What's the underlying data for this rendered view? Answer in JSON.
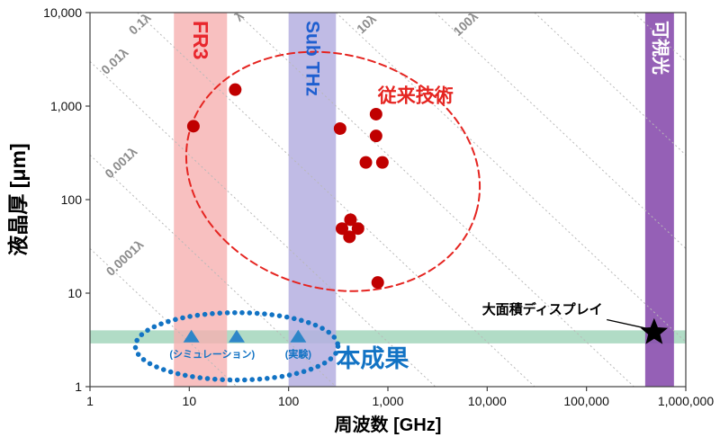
{
  "chart_data": {
    "type": "scatter",
    "x_axis": {
      "label": "周波数 [GHz]",
      "scale": "log",
      "min": 1,
      "max": 1000000,
      "tick_values": [
        1,
        10,
        100,
        1000,
        10000,
        100000,
        1000000
      ],
      "tick_labels": [
        "1",
        "10",
        "100",
        "1,000",
        "10,000",
        "100,000",
        "1,000,000"
      ]
    },
    "y_axis": {
      "label": "液晶厚 [μm]",
      "scale": "log",
      "min": 1,
      "max": 10000,
      "tick_values": [
        1,
        10,
        100,
        1000,
        10000
      ],
      "tick_labels": [
        "1",
        "10",
        "100",
        "1,000",
        "10,000"
      ]
    },
    "series": [
      {
        "name": "従来技術",
        "marker": "circle",
        "color": "#c00000",
        "points": [
          [
            11,
            610
          ],
          [
            29,
            1500
          ],
          [
            330,
            575
          ],
          [
            760,
            820
          ],
          [
            760,
            480
          ],
          [
            600,
            250
          ],
          [
            880,
            250
          ],
          [
            420,
            61
          ],
          [
            345,
            49
          ],
          [
            500,
            49
          ],
          [
            410,
            40
          ],
          [
            790,
            13
          ]
        ]
      },
      {
        "name": "本成果",
        "marker": "triangle",
        "color": "#2e86c8",
        "points": [
          [
            10.5,
            3.4
          ],
          [
            30,
            3.4
          ],
          [
            125,
            3.4
          ]
        ]
      },
      {
        "name": "大面積ディスプレイ",
        "marker": "star",
        "color": "#000000",
        "points": [
          [
            480000,
            3.8
          ]
        ]
      }
    ],
    "bands_vertical": [
      {
        "label": "FR3",
        "from": 7,
        "to": 24,
        "fill": "#f6b0b0",
        "opacity": 0.8,
        "label_color": "#e8262d",
        "label_size": 23
      },
      {
        "label": "Sub THz",
        "from": 100,
        "to": 300,
        "fill": "#b5afe0",
        "opacity": 0.85,
        "label_color": "#1f5fd0",
        "label_size": 21
      },
      {
        "label": "可視光",
        "from": 390000,
        "to": 760000,
        "fill": "#8a4fae",
        "opacity": 0.9,
        "label_color": "#ffffff",
        "label_size": 20
      }
    ],
    "band_horizontal": {
      "from": 2.9,
      "to": 4.0,
      "fill": "#a8d8c0",
      "opacity": 0.9
    },
    "guide_lines": {
      "color": "#b8b8b8",
      "label_color": "#8c8c8c",
      "wavelength_um_at_1GHz": 300000,
      "lines": [
        {
          "ratio": 0.0001,
          "label": "0.0001λ",
          "label_at": [
            2.4,
            22
          ]
        },
        {
          "ratio": 0.001,
          "label": "0.001λ",
          "label_at": [
            2.2,
            230
          ]
        },
        {
          "ratio": 0.01,
          "label": "0.01λ",
          "label_at": [
            1.9,
            2800
          ]
        },
        {
          "ratio": 0.1,
          "label": "0.1λ",
          "label_at": [
            3.4,
            7000
          ]
        },
        {
          "ratio": 1,
          "label": "λ",
          "label_at": [
            34,
            8400
          ]
        },
        {
          "ratio": 10,
          "label": "10λ",
          "label_at": [
            650,
            7000
          ]
        },
        {
          "ratio": 100,
          "label": "100λ",
          "label_at": [
            6500,
            7000
          ]
        },
        {
          "ratio": 1000,
          "label": "",
          "label_at": [
            0,
            0
          ]
        },
        {
          "ratio": 10000,
          "label": "",
          "label_at": [
            0,
            0
          ]
        }
      ]
    },
    "ellipses": [
      {
        "name": "conventional-tech-ellipse",
        "color": "#e52521",
        "width": 2,
        "dash": "8 5",
        "at": [
          280,
          200
        ],
        "rx_decades": 1.5,
        "ry_decades": 1.25,
        "rotation": 16
      },
      {
        "name": "this-work-ellipse",
        "color": "#1273c4",
        "width": 5.5,
        "dash": "0.1 8.2",
        "at": [
          30,
          2.7
        ],
        "rx_decades": 1.02,
        "ry_decades": 0.36,
        "rotation": 0
      }
    ],
    "leader_line": {
      "from": [
        160000,
        5.2
      ],
      "to": [
        400000,
        4.2
      ],
      "color": "#000000"
    },
    "annotations": [
      {
        "text": "従来技術",
        "color": "#e52521",
        "size": 21,
        "bold": true,
        "at": [
          1900,
          1100
        ]
      },
      {
        "text": "本成果",
        "color": "#1273c4",
        "size": 27,
        "bold": true,
        "at": [
          700,
          1.62
        ]
      },
      {
        "text": "(シミュレーション)",
        "color": "#1273c4",
        "size": 11,
        "bold": true,
        "at": [
          17,
          2.05
        ]
      },
      {
        "text": "(実験)",
        "color": "#1273c4",
        "size": 11,
        "bold": true,
        "at": [
          125,
          2.05
        ]
      },
      {
        "text": "大面積ディスプレイ",
        "color": "#000000",
        "size": 15,
        "bold": true,
        "at": [
          36000,
          6.0
        ]
      }
    ]
  }
}
